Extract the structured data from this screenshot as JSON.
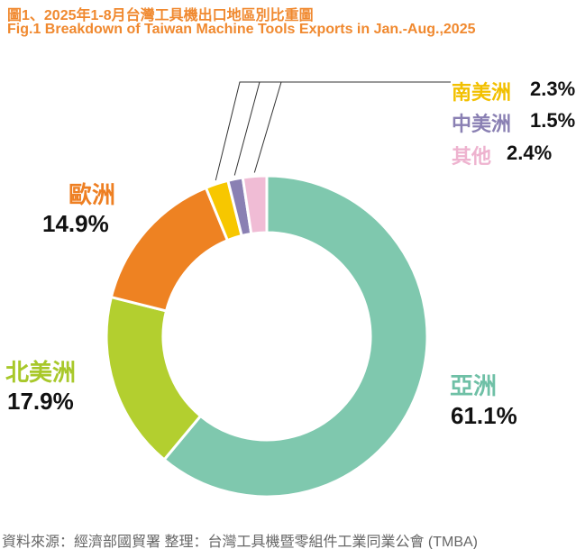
{
  "title_zh": "圖1、2025年1-8月台灣工具機出口地區別比重圖",
  "title_en": "Fig.1    Breakdown of Taiwan Machine Tools Exports in Jan.-Aug.,2025",
  "source": "資料來源：經濟部國貿署    整理：台灣工具機暨零組件工業同業公會 (TMBA)",
  "chart_data": {
    "type": "pie",
    "donut": true,
    "title": "Breakdown of Taiwan Machine Tools Exports in Jan.-Aug.,2025",
    "slices": [
      {
        "name": "亞洲",
        "value": 61.1,
        "label": "61.1%",
        "color": "#7fc8ae",
        "label_color": "#6fc0a6"
      },
      {
        "name": "北美洲",
        "value": 17.9,
        "label": "17.9%",
        "color": "#b3cf2f",
        "label_color": "#a8c82a"
      },
      {
        "name": "歐洲",
        "value": 14.9,
        "label": "14.9%",
        "color": "#ee8222",
        "label_color": "#ee7f22"
      },
      {
        "name": "南美洲",
        "value": 2.3,
        "label": "2.3%",
        "color": "#f7c700",
        "label_color": "#f2c000"
      },
      {
        "name": "中美洲",
        "value": 1.5,
        "label": "1.5%",
        "color": "#8a80b3",
        "label_color": "#8a80b3"
      },
      {
        "name": "其他",
        "value": 2.4,
        "label": "2.4%",
        "color": "#f0bcd5",
        "label_color": "#eeb3cf"
      }
    ]
  }
}
